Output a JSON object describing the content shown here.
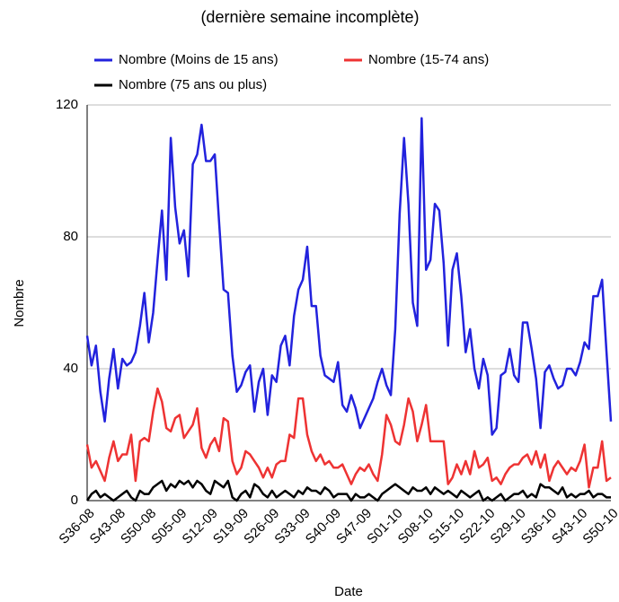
{
  "chart_data": {
    "type": "line",
    "title": "(dernière semaine incomplète)",
    "x_label": "Date",
    "y_label": "Nombre",
    "categories": [
      "S36-08",
      null,
      null,
      null,
      null,
      null,
      null,
      "S43-08",
      null,
      null,
      null,
      null,
      null,
      null,
      "S50-08",
      null,
      null,
      null,
      null,
      null,
      null,
      "S05-09",
      null,
      null,
      null,
      null,
      null,
      null,
      "S12-09",
      null,
      null,
      null,
      null,
      null,
      null,
      "S19-09",
      null,
      null,
      null,
      null,
      null,
      null,
      "S26-09",
      null,
      null,
      null,
      null,
      null,
      null,
      "S33-09",
      null,
      null,
      null,
      null,
      null,
      null,
      "S40-09",
      null,
      null,
      null,
      null,
      null,
      null,
      "S47-09",
      null,
      null,
      null,
      null,
      null,
      null,
      "S01-10",
      null,
      null,
      null,
      null,
      null,
      null,
      "S08-10",
      null,
      null,
      null,
      null,
      null,
      null,
      "S15-10",
      null,
      null,
      null,
      null,
      null,
      null,
      "S22-10",
      null,
      null,
      null,
      null,
      null,
      null,
      "S29-10",
      null,
      null,
      null,
      null,
      null,
      null,
      "S36-10",
      null,
      null,
      null,
      null,
      null,
      null,
      "S43-10",
      null,
      null,
      null,
      null,
      null,
      null,
      "S50-10"
    ],
    "series": [
      {
        "name": "Nombre (Moins de 15 ans)",
        "color": "#2222dd",
        "values": [
          50,
          41,
          47,
          33,
          24,
          37,
          46,
          34,
          43,
          41,
          42,
          45,
          53,
          63,
          48,
          57,
          73,
          88,
          67,
          110,
          89,
          78,
          82,
          68,
          102,
          105,
          114,
          103,
          103,
          105,
          84,
          64,
          63,
          44,
          33,
          35,
          39,
          41,
          27,
          36,
          40,
          26,
          38,
          36,
          47,
          50,
          41,
          56,
          64,
          67,
          77,
          59,
          59,
          44,
          38,
          37,
          36,
          42,
          29,
          27,
          32,
          28,
          22,
          25,
          28,
          31,
          36,
          40,
          35,
          32,
          52,
          87,
          110,
          90,
          60,
          53,
          116,
          70,
          73,
          90,
          88,
          72,
          47,
          70,
          75,
          62,
          45,
          52,
          40,
          34,
          43,
          38,
          20,
          22,
          38,
          39,
          46,
          38,
          36,
          54,
          54,
          46,
          37,
          22,
          39,
          41,
          37,
          34,
          35,
          40,
          40,
          38,
          42,
          48,
          46,
          62,
          62,
          67,
          45,
          24
        ]
      },
      {
        "name": "Nombre (15-74 ans)",
        "color": "#ee3333",
        "values": [
          17,
          10,
          12,
          9,
          6,
          13,
          18,
          12,
          14,
          14,
          20,
          6,
          18,
          19,
          18,
          27,
          34,
          30,
          22,
          21,
          25,
          26,
          19,
          21,
          23,
          28,
          16,
          13,
          17,
          19,
          15,
          25,
          24,
          12,
          8,
          10,
          15,
          14,
          12,
          10,
          7,
          10,
          7,
          11,
          12,
          12,
          20,
          19,
          31,
          31,
          20,
          15,
          12,
          14,
          11,
          12,
          10,
          10,
          11,
          8,
          5,
          8,
          10,
          9,
          11,
          8,
          6,
          14,
          26,
          23,
          18,
          17,
          23,
          31,
          27,
          18,
          23,
          29,
          18,
          18,
          18,
          18,
          5,
          7,
          11,
          8,
          12,
          8,
          15,
          10,
          11,
          13,
          6,
          7,
          5,
          8,
          10,
          11,
          11,
          13,
          14,
          11,
          15,
          10,
          14,
          6,
          10,
          12,
          10,
          8,
          10,
          9,
          12,
          17,
          4,
          10,
          10,
          18,
          6,
          7
        ]
      },
      {
        "name": "Nombre (75 ans ou plus)",
        "color": "#000000",
        "values": [
          0,
          2,
          3,
          1,
          2,
          1,
          0,
          1,
          2,
          3,
          1,
          0,
          3,
          2,
          2,
          4,
          5,
          6,
          3,
          5,
          4,
          6,
          5,
          6,
          4,
          6,
          5,
          3,
          2,
          6,
          5,
          4,
          6,
          1,
          0,
          2,
          3,
          1,
          5,
          4,
          2,
          1,
          3,
          1,
          2,
          3,
          2,
          1,
          3,
          2,
          4,
          3,
          3,
          2,
          4,
          3,
          1,
          2,
          2,
          2,
          0,
          2,
          1,
          1,
          2,
          1,
          0,
          2,
          3,
          4,
          5,
          4,
          3,
          2,
          4,
          3,
          3,
          4,
          2,
          4,
          3,
          2,
          3,
          2,
          1,
          3,
          2,
          1,
          2,
          3,
          0,
          1,
          0,
          1,
          2,
          0,
          1,
          2,
          2,
          3,
          1,
          2,
          1,
          5,
          4,
          4,
          3,
          2,
          4,
          1,
          2,
          1,
          2,
          2,
          3,
          1,
          2,
          2,
          1,
          1
        ]
      }
    ],
    "ylim": [
      0,
      120
    ],
    "yticks": [
      0,
      40,
      80,
      120
    ],
    "grid": true
  }
}
